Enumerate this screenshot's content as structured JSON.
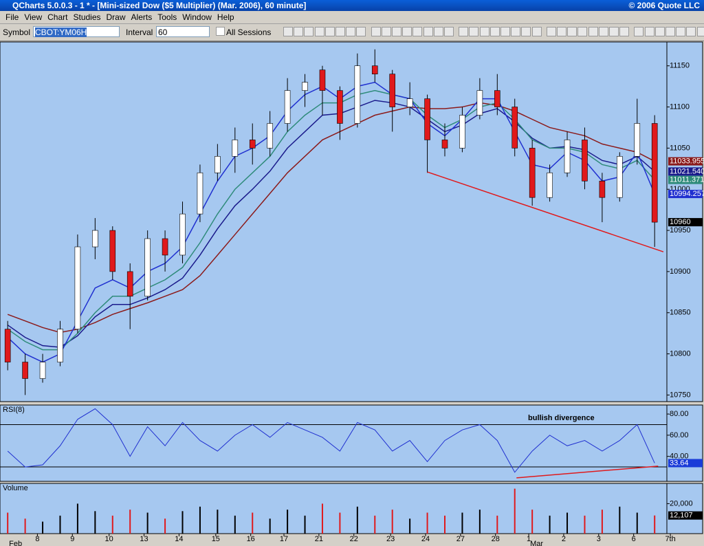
{
  "window": {
    "title": "QCharts 5.0.0.3 - 1 * - [Mini-sized Dow ($5 Multiplier) (Mar. 2006), 60 minute]",
    "copyright": "© 2006 Quote LLC"
  },
  "menu": [
    "File",
    "View",
    "Chart",
    "Studies",
    "Draw",
    "Alerts",
    "Tools",
    "Window",
    "Help"
  ],
  "toolbar": {
    "symbol_label": "Symbol",
    "symbol": "CBOT:YM06H",
    "interval_label": "Interval",
    "interval": "60",
    "all_sessions": "All Sessions"
  },
  "chart_data": [
    {
      "type": "candlestick",
      "up_color": "#ffffff",
      "down_color": "#e0191b",
      "open": [
        10830,
        10790,
        10770,
        10790,
        10830,
        10930,
        10950,
        10900,
        10870,
        10940,
        10920,
        10970,
        11020,
        11040,
        11060,
        11050,
        11080,
        11120,
        11145,
        11120,
        11080,
        11150,
        11140,
        11100,
        11110,
        11060,
        11050,
        11090,
        11120,
        11100,
        11050,
        10990,
        11020,
        11060,
        11010,
        10990,
        11040,
        11080
      ],
      "high": [
        10840,
        10800,
        10800,
        10840,
        10945,
        10965,
        10955,
        10910,
        10950,
        10950,
        10985,
        11030,
        11055,
        11075,
        11080,
        11095,
        11135,
        11140,
        11150,
        11125,
        11165,
        11170,
        11145,
        11130,
        11115,
        11080,
        11100,
        11135,
        11140,
        11110,
        11060,
        11030,
        11070,
        11075,
        11020,
        11045,
        11110,
        11090
      ],
      "low": [
        10780,
        10750,
        10765,
        10785,
        10825,
        10915,
        10890,
        10830,
        10865,
        10900,
        10910,
        10960,
        11010,
        11020,
        11030,
        11040,
        11070,
        11100,
        11090,
        11060,
        11075,
        11130,
        11070,
        11090,
        11020,
        11040,
        11045,
        11085,
        11090,
        11040,
        10980,
        10985,
        11015,
        11000,
        10960,
        10985,
        11030,
        10930
      ],
      "close": [
        10790,
        10770,
        10790,
        10830,
        10930,
        10950,
        10900,
        10870,
        10940,
        10920,
        10970,
        11020,
        11040,
        11060,
        11050,
        11080,
        11120,
        11130,
        11120,
        11080,
        11150,
        11140,
        11100,
        11110,
        11060,
        11050,
        11090,
        11120,
        11100,
        11050,
        10990,
        11020,
        11060,
        11010,
        10990,
        11040,
        11080,
        10960
      ],
      "series": [
        {
          "color": "#8b1a1a",
          "last_label": "11033.955",
          "values": [
            10848,
            10840,
            10832,
            10826,
            10830,
            10838,
            10848,
            10855,
            10862,
            10870,
            10878,
            10895,
            10920,
            10945,
            10970,
            10995,
            11020,
            11040,
            11060,
            11070,
            11080,
            11090,
            11095,
            11100,
            11098,
            11098,
            11100,
            11105,
            11102,
            11095,
            11085,
            11075,
            11070,
            11065,
            11055,
            11050,
            11045,
            11033.955
          ]
        },
        {
          "color": "#1a1a8b",
          "last_label": "11021.540",
          "values": [
            10835,
            10820,
            10810,
            10808,
            10822,
            10845,
            10860,
            10860,
            10868,
            10878,
            10892,
            10920,
            10952,
            10980,
            11000,
            11022,
            11050,
            11070,
            11090,
            11092,
            11100,
            11108,
            11105,
            11100,
            11085,
            11070,
            11078,
            11092,
            11098,
            11082,
            11062,
            11050,
            11052,
            11048,
            11035,
            11030,
            11040,
            11021.54
          ]
        },
        {
          "color": "#2e8b7a",
          "last_label": "11011.371",
          "values": [
            10830,
            10815,
            10805,
            10805,
            10825,
            10850,
            10870,
            10870,
            10880,
            10890,
            10905,
            10935,
            10970,
            11000,
            11020,
            11040,
            11070,
            11090,
            11105,
            11105,
            11115,
            11120,
            11115,
            11110,
            11090,
            11075,
            11085,
            11100,
            11105,
            11085,
            11060,
            11050,
            11050,
            11045,
            11030,
            11025,
            11035,
            11011.371
          ]
        },
        {
          "color": "#2030d0",
          "last_label": "10994.257",
          "values": [
            10820,
            10800,
            10790,
            10800,
            10840,
            10880,
            10890,
            10880,
            10900,
            10910,
            10930,
            10970,
            11010,
            11040,
            11050,
            11065,
            11095,
            11115,
            11125,
            11110,
            11125,
            11130,
            11115,
            11110,
            11080,
            11065,
            11085,
            11110,
            11110,
            11070,
            11030,
            11025,
            11045,
            11035,
            11010,
            11015,
            11045,
            10994.257
          ]
        }
      ],
      "trendline": {
        "color": "#e0191b",
        "x": [
          24,
          37.5
        ],
        "values": [
          11021,
          10924
        ]
      },
      "ylim": [
        10742,
        11179
      ],
      "yticks": [
        10750,
        10800,
        10850,
        10900,
        10950,
        11000,
        11050,
        11100,
        11150
      ],
      "xlim": [
        -0.4,
        37.7
      ],
      "xticks": [
        {
          "value": 1.7,
          "label": "8"
        },
        {
          "value": 3.7,
          "label": "9"
        },
        {
          "value": 5.8,
          "label": "10"
        },
        {
          "value": 7.8,
          "label": "13"
        },
        {
          "value": 9.8,
          "label": "14"
        },
        {
          "value": 11.9,
          "label": "15"
        },
        {
          "value": 13.9,
          "label": "16"
        },
        {
          "value": 15.8,
          "label": "17"
        },
        {
          "value": 17.8,
          "label": "21"
        },
        {
          "value": 19.8,
          "label": "22"
        },
        {
          "value": 21.9,
          "label": "23"
        },
        {
          "value": 23.9,
          "label": "24"
        },
        {
          "value": 25.9,
          "label": "27"
        },
        {
          "value": 27.9,
          "label": "28"
        },
        {
          "value": 29.8,
          "label": "1"
        },
        {
          "value": 31.8,
          "label": "2"
        },
        {
          "value": 33.8,
          "label": "3"
        },
        {
          "value": 35.8,
          "label": "6"
        },
        {
          "value": 37.9,
          "label": "7th"
        }
      ],
      "month_labels": [
        {
          "value": 0,
          "label": "Feb"
        },
        {
          "value": 29.8,
          "label": "Mar"
        }
      ]
    },
    {
      "type": "line",
      "title": "RSI(8)",
      "annotation": "bullish divergence",
      "color": "#2030d0",
      "values": [
        45,
        30,
        32,
        50,
        75,
        85,
        70,
        40,
        68,
        50,
        72,
        55,
        45,
        60,
        70,
        58,
        72,
        65,
        58,
        45,
        72,
        65,
        45,
        55,
        35,
        55,
        65,
        70,
        55,
        25,
        45,
        60,
        50,
        55,
        45,
        55,
        70,
        33.64
      ],
      "levels": [
        70,
        30
      ],
      "trendline": {
        "color": "#e0191b",
        "x": [
          29.1,
          37.2
        ],
        "values": [
          19.7,
          30.8
        ]
      },
      "ylim": [
        16.4,
        88.5
      ],
      "yticks": [
        {
          "value": 80,
          "label": "80.00"
        },
        {
          "value": 60,
          "label": "60.00"
        },
        {
          "value": 40,
          "label": "40.00"
        }
      ]
    },
    {
      "type": "bar",
      "title": "Volume",
      "color": "#000000",
      "down_color": "#e0191b",
      "last_label": "12,107",
      "values": [
        14000,
        10000,
        8000,
        12000,
        20000,
        15000,
        12000,
        16000,
        14000,
        10000,
        15000,
        18000,
        16000,
        12000,
        14000,
        10000,
        16000,
        12000,
        20000,
        14000,
        18000,
        12000,
        16000,
        10000,
        14000,
        12000,
        14000,
        16000,
        12000,
        30000,
        16000,
        12000,
        14000,
        12000,
        16000,
        18000,
        14000,
        12107
      ],
      "ylim": [
        0,
        33500
      ],
      "yticks": [
        {
          "value": 20000,
          "label": "20,000"
        }
      ]
    }
  ]
}
